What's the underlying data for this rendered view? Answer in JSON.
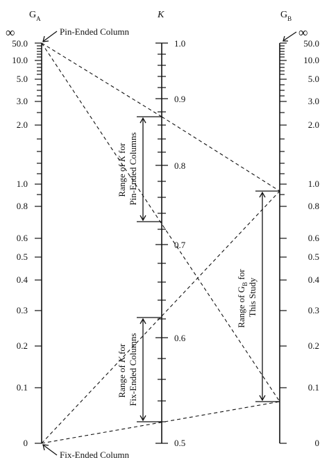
{
  "axes": {
    "ga": {
      "title": "G",
      "subscript": "A",
      "infinity": "∞",
      "tick_labels": [
        "50.0",
        "10.0",
        "5.0",
        "3.0",
        "2.0",
        "1.0",
        "0.8",
        "0.6",
        "0.5",
        "0.4",
        "0.3",
        "0.2",
        "0.1",
        "0"
      ]
    },
    "k": {
      "title": "K",
      "tick_labels": [
        "1.0",
        "0.9",
        "0.8",
        "0.7",
        "0.6",
        "0.5"
      ]
    },
    "gb": {
      "title": "G",
      "subscript": "B",
      "infinity": "∞",
      "tick_labels": [
        "50.0",
        "10.0",
        "5.0",
        "3.0",
        "2.0",
        "1.0",
        "0.8",
        "0.6",
        "0.5",
        "0.4",
        "0.3",
        "0.2",
        "0.1",
        "0"
      ]
    }
  },
  "annotations": {
    "pin_ended": "Pin-Ended Column",
    "fix_ended": "Fix-Ended Column",
    "range_k_pin": {
      "line1_pre": "Range of ",
      "line1_var": "K",
      "line1_post": " for",
      "line2": "Pin-Ended Columns"
    },
    "range_k_fix": {
      "line1_pre": "Range of ",
      "line1_var": "K",
      "line1_post": " for",
      "line2": "Fix-Ended Columns"
    },
    "range_gb": {
      "line1_pre": "Range of G",
      "line1_sub": "B",
      "line1_post": " for",
      "line2": "This Study"
    }
  }
}
